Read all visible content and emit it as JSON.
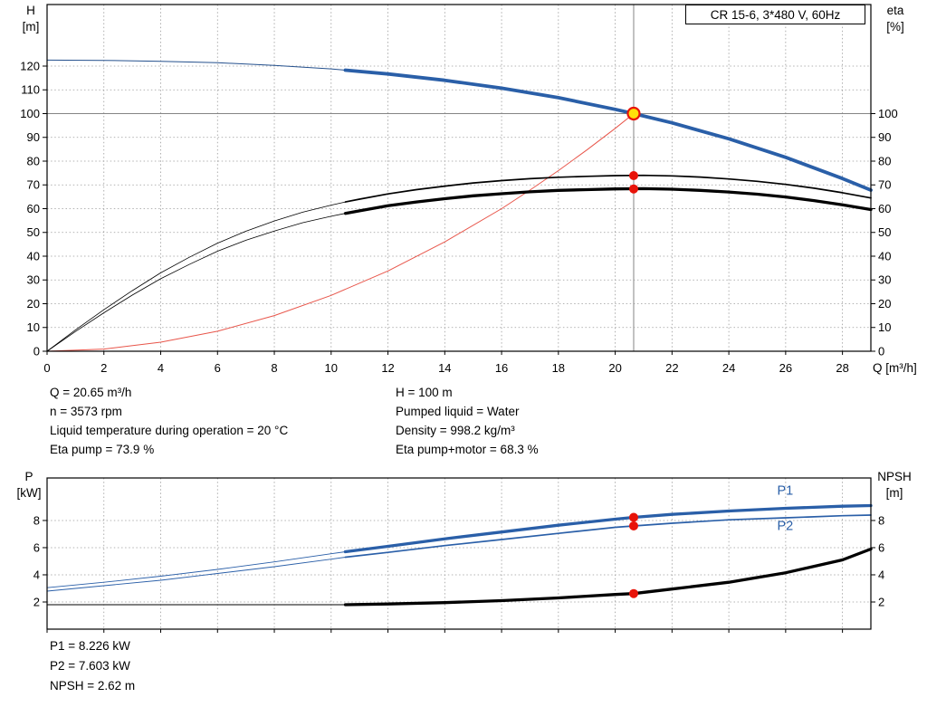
{
  "title_box": "CR 15-6, 3*480 V, 60Hz",
  "axis_titles": {
    "h": "H",
    "h_unit": "[m]",
    "eta": "eta",
    "eta_unit": "[%]",
    "q": "Q [m³/h]",
    "p": "P",
    "p_unit": "[kW]",
    "npsh": "NPSH",
    "npsh_unit": "[m]"
  },
  "info": {
    "left": [
      "Q = 20.65 m³/h",
      "n = 3573 rpm",
      "Liquid temperature during operation = 20 °C",
      "Eta pump = 73.9 %"
    ],
    "right": [
      "H = 100 m",
      "Pumped liquid = Water",
      "Density = 998.2 kg/m³",
      "Eta pump+motor = 68.3 %"
    ],
    "bottom": [
      "P1 = 8.226 kW",
      "P2 = 7.603 kW",
      "NPSH = 2.62 m"
    ]
  },
  "colors": {
    "curve_blue": "#2a5fa8",
    "curve_black": "#000000",
    "system_red": "#e8554a",
    "marker_red": "#e81309",
    "marker_yellow": "#ffe10a",
    "grid_gray": "#9a9a9a",
    "ref_gray": "#858585"
  },
  "chart_data": [
    {
      "id": "hq",
      "type": "line",
      "title": "CR 15-6, 3*480 V, 60Hz",
      "xlabel": "Q [m³/h]",
      "ylabel_left": "H [m]",
      "ylabel_right": "eta [%]",
      "xlim": [
        0,
        29
      ],
      "ylim": [
        0,
        145.9
      ],
      "show_x_labels": true,
      "x_ticks": [
        0,
        2,
        4,
        6,
        8,
        10,
        12,
        14,
        16,
        18,
        20,
        22,
        24,
        26,
        28
      ],
      "left_ticks": [
        0,
        10,
        20,
        30,
        40,
        50,
        60,
        70,
        80,
        90,
        100,
        110,
        120
      ],
      "right_ticks": [
        0,
        10,
        20,
        30,
        40,
        50,
        60,
        70,
        80,
        90,
        100
      ],
      "ref_lines": [
        {
          "dir": "h",
          "at": 100,
          "from": 0,
          "to": 29,
          "color": "#858585",
          "width": 1
        },
        {
          "dir": "v",
          "at": 20.65,
          "from": 0,
          "to": 145.9,
          "color": "#858585",
          "width": 1
        }
      ],
      "series": [
        {
          "name": "system-curve",
          "color": "#e8554a",
          "width": 1,
          "points": [
            [
              0,
              0
            ],
            [
              2,
              0.9
            ],
            [
              4,
              3.8
            ],
            [
              6,
              8.4
            ],
            [
              8,
              15
            ],
            [
              10,
              23.5
            ],
            [
              12,
              33.8
            ],
            [
              14,
              46
            ],
            [
              16,
              60
            ],
            [
              17,
              67.8
            ],
            [
              18,
              76
            ],
            [
              19,
              84.7
            ],
            [
              20,
              93.8
            ],
            [
              20.65,
              100
            ]
          ]
        },
        {
          "name": "eta-pump-curve",
          "color": "#000000",
          "width": 1.7,
          "thin_width": 0.8,
          "split_q": 10.5,
          "points": [
            [
              0,
              0
            ],
            [
              1,
              9
            ],
            [
              2,
              17.5
            ],
            [
              3,
              25.5
            ],
            [
              4,
              33
            ],
            [
              5,
              39.5
            ],
            [
              6,
              45.5
            ],
            [
              7,
              50.5
            ],
            [
              8,
              54.8
            ],
            [
              9,
              58.5
            ],
            [
              10,
              61.5
            ],
            [
              10.5,
              62.8
            ],
            [
              11,
              64
            ],
            [
              12,
              66.2
            ],
            [
              13,
              68
            ],
            [
              14,
              69.5
            ],
            [
              15,
              70.8
            ],
            [
              16,
              71.8
            ],
            [
              17,
              72.6
            ],
            [
              18,
              73.2
            ],
            [
              19,
              73.6
            ],
            [
              20,
              73.9
            ],
            [
              21,
              74
            ],
            [
              22,
              73.8
            ],
            [
              23,
              73.3
            ],
            [
              24,
              72.5
            ],
            [
              25,
              71.5
            ],
            [
              26,
              70.2
            ],
            [
              27,
              68.6
            ],
            [
              28,
              66.7
            ],
            [
              29,
              64.5
            ]
          ]
        },
        {
          "name": "eta-pump-motor-curve",
          "color": "#000000",
          "width": 3.3,
          "thin_width": 0.8,
          "split_q": 10.5,
          "points": [
            [
              0,
              0
            ],
            [
              1,
              8.3
            ],
            [
              2,
              16.2
            ],
            [
              3,
              23.6
            ],
            [
              4,
              30.5
            ],
            [
              5,
              36.5
            ],
            [
              6,
              42.1
            ],
            [
              7,
              46.7
            ],
            [
              8,
              50.6
            ],
            [
              9,
              54.1
            ],
            [
              10,
              56.8
            ],
            [
              10.5,
              58
            ],
            [
              11,
              59.1
            ],
            [
              12,
              61.2
            ],
            [
              13,
              62.8
            ],
            [
              14,
              64.2
            ],
            [
              15,
              65.4
            ],
            [
              16,
              66.3
            ],
            [
              17,
              67.1
            ],
            [
              18,
              67.7
            ],
            [
              19,
              68
            ],
            [
              20,
              68.3
            ],
            [
              21,
              68.4
            ],
            [
              22,
              68.2
            ],
            [
              23,
              67.7
            ],
            [
              24,
              67
            ],
            [
              25,
              66.1
            ],
            [
              26,
              64.9
            ],
            [
              27,
              63.4
            ],
            [
              28,
              61.6
            ],
            [
              29,
              59.6
            ]
          ]
        },
        {
          "name": "head-curve",
          "color": "#2a5fa8",
          "width": 3.8,
          "thin_width": 1,
          "thin_color": "#24508d",
          "split_q": 10.5,
          "points": [
            [
              0,
              122.5
            ],
            [
              2,
              122.4
            ],
            [
              4,
              122
            ],
            [
              6,
              121.4
            ],
            [
              8,
              120.3
            ],
            [
              10,
              118.8
            ],
            [
              10.5,
              118.3
            ],
            [
              12,
              116.7
            ],
            [
              14,
              114
            ],
            [
              16,
              110.7
            ],
            [
              18,
              106.7
            ],
            [
              20,
              101.8
            ],
            [
              20.65,
              100
            ],
            [
              22,
              96.1
            ],
            [
              24,
              89.4
            ],
            [
              26,
              81.6
            ],
            [
              28,
              72.7
            ],
            [
              29,
              67.8
            ]
          ]
        }
      ],
      "markers": [
        {
          "name": "duty-point-marker",
          "x": 20.65,
          "y": 100,
          "r": 6.5,
          "fill": "#ffe10a",
          "stroke": "#e81309",
          "stroke_width": 2.2
        },
        {
          "name": "eta-pump-point",
          "x": 20.65,
          "y": 73.9,
          "r": 5,
          "fill": "#e81309"
        },
        {
          "name": "eta-pump-motor-point",
          "x": 20.65,
          "y": 68.3,
          "r": 5,
          "fill": "#e81309"
        }
      ],
      "annotations": []
    },
    {
      "id": "power",
      "type": "line",
      "title": "",
      "xlabel": "Q [m³/h]",
      "ylabel_left": "P [kW]",
      "ylabel_right": "NPSH [m]",
      "xlim": [
        0,
        29
      ],
      "ylim": [
        0,
        11.13
      ],
      "show_x_labels": false,
      "x_ticks": [
        0,
        2,
        4,
        6,
        8,
        10,
        12,
        14,
        16,
        18,
        20,
        22,
        24,
        26,
        28
      ],
      "left_ticks": [
        2,
        4,
        6,
        8
      ],
      "right_ticks": [
        2,
        4,
        6,
        8
      ],
      "ref_lines": [],
      "series": [
        {
          "name": "npsh-curve",
          "color": "#000000",
          "width": 3.3,
          "thin_width": 1,
          "split_q": 10.5,
          "points": [
            [
              0,
              1.8
            ],
            [
              4,
              1.8
            ],
            [
              8,
              1.8
            ],
            [
              10.5,
              1.8
            ],
            [
              12,
              1.85
            ],
            [
              14,
              1.95
            ],
            [
              16,
              2.1
            ],
            [
              18,
              2.3
            ],
            [
              20,
              2.55
            ],
            [
              20.65,
              2.62
            ],
            [
              22,
              2.95
            ],
            [
              24,
              3.45
            ],
            [
              26,
              4.15
            ],
            [
              28,
              5.1
            ],
            [
              29,
              5.9
            ]
          ]
        },
        {
          "name": "p2-curve",
          "color": "#2a5fa8",
          "width": 1.7,
          "thin_width": 0.9,
          "split_q": 10.5,
          "points": [
            [
              0,
              2.8
            ],
            [
              2,
              3.2
            ],
            [
              4,
              3.6
            ],
            [
              6,
              4.1
            ],
            [
              8,
              4.6
            ],
            [
              10,
              5.15
            ],
            [
              10.5,
              5.3
            ],
            [
              12,
              5.65
            ],
            [
              14,
              6.15
            ],
            [
              16,
              6.6
            ],
            [
              18,
              7.05
            ],
            [
              20,
              7.5
            ],
            [
              20.65,
              7.6
            ],
            [
              22,
              7.8
            ],
            [
              24,
              8.05
            ],
            [
              26,
              8.2
            ],
            [
              28,
              8.35
            ],
            [
              29,
              8.4
            ]
          ]
        },
        {
          "name": "p1-curve",
          "color": "#2a5fa8",
          "width": 3.3,
          "thin_width": 0.9,
          "split_q": 10.5,
          "points": [
            [
              0,
              3.05
            ],
            [
              2,
              3.45
            ],
            [
              4,
              3.9
            ],
            [
              6,
              4.4
            ],
            [
              8,
              4.95
            ],
            [
              10,
              5.55
            ],
            [
              10.5,
              5.7
            ],
            [
              12,
              6.1
            ],
            [
              14,
              6.65
            ],
            [
              16,
              7.15
            ],
            [
              18,
              7.65
            ],
            [
              20,
              8.1
            ],
            [
              20.65,
              8.23
            ],
            [
              22,
              8.45
            ],
            [
              24,
              8.7
            ],
            [
              26,
              8.9
            ],
            [
              28,
              9.05
            ],
            [
              29,
              9.1
            ]
          ]
        }
      ],
      "markers": [
        {
          "name": "p1-point",
          "x": 20.65,
          "y": 8.23,
          "r": 5,
          "fill": "#e81309"
        },
        {
          "name": "p2-point",
          "x": 20.65,
          "y": 7.6,
          "r": 5,
          "fill": "#e81309"
        },
        {
          "name": "npsh-point",
          "x": 20.65,
          "y": 2.62,
          "r": 5,
          "fill": "#e81309"
        }
      ],
      "annotations": [
        {
          "text": "P1",
          "x": 25.7,
          "y": 9.9,
          "color": "#2a5fa8"
        },
        {
          "text": "P2",
          "x": 25.7,
          "y": 7.3,
          "color": "#2a5fa8"
        }
      ]
    }
  ]
}
